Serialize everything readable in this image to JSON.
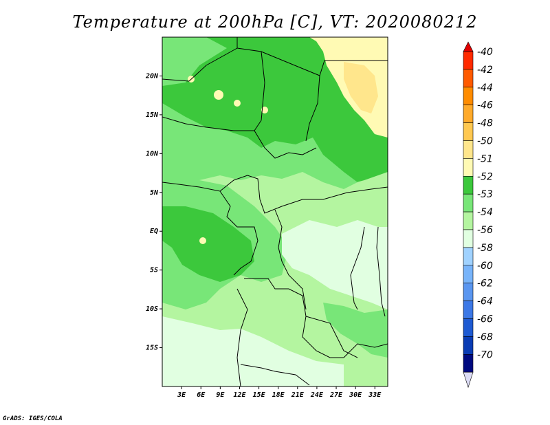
{
  "title": "Temperature at 200hPa [C], VT: 2020080212",
  "credit": "GrADS: IGES/COLA",
  "map": {
    "lat_labels": [
      "20N",
      "15N",
      "10N",
      "5N",
      "EQ",
      "5S",
      "10S",
      "15S"
    ],
    "lat_values": [
      20,
      15,
      10,
      5,
      0,
      -5,
      -10,
      -15
    ],
    "lon_labels": [
      "3E",
      "6E",
      "9E",
      "12E",
      "15E",
      "18E",
      "21E",
      "24E",
      "27E",
      "30E",
      "33E"
    ],
    "lon_values": [
      3,
      6,
      9,
      12,
      15,
      18,
      21,
      24,
      27,
      30,
      33
    ],
    "lon_range": [
      0,
      35
    ],
    "lat_range": [
      -20,
      25
    ]
  },
  "colorbar": {
    "labels": [
      "-40",
      "-42",
      "-44",
      "-46",
      "-48",
      "-50",
      "-51",
      "-52",
      "-53",
      "-54",
      "-56",
      "-58",
      "-60",
      "-62",
      "-64",
      "-66",
      "-68",
      "-70"
    ],
    "colors": [
      "#ff2a00",
      "#ff5a00",
      "#ff8c00",
      "#ffaa2a",
      "#ffc850",
      "#ffe68c",
      "#fffab4",
      "#3cc83c",
      "#78e678",
      "#b4f5a0",
      "#e1ffe1",
      "#a0d2ff",
      "#78b4fa",
      "#5a96f0",
      "#3c78e6",
      "#1e5ad2",
      "#0a3cb4",
      "#000a80",
      "#dcdcf5"
    ],
    "tip_top_color": "#e00000",
    "tip_bottom_color": "#dcdcf5"
  }
}
